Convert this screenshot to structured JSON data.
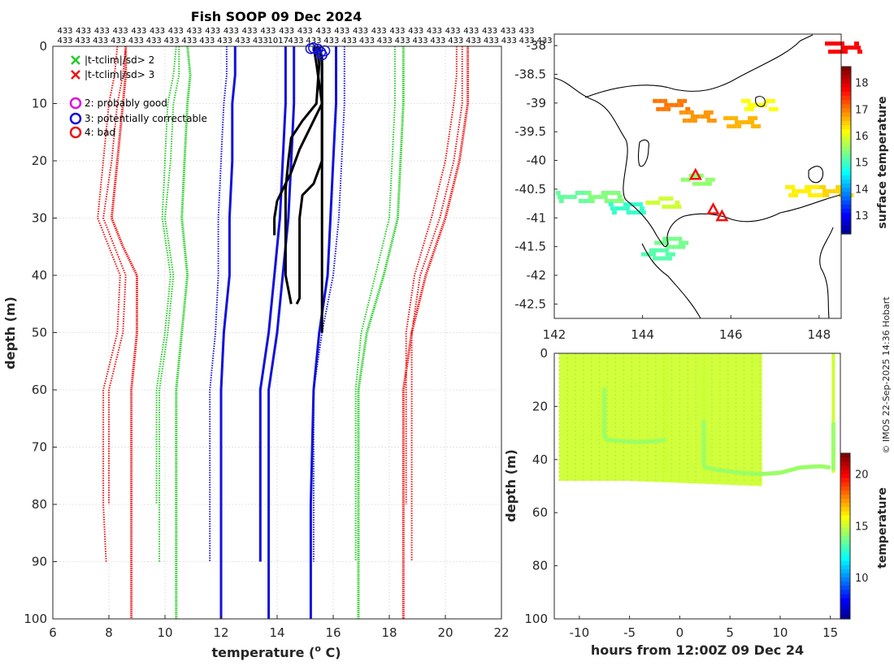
{
  "chart_data": [
    {
      "type": "line",
      "title": "Fish SOOP 09 Dec 2024",
      "xlabel": "temperature (",
      "xlabel_sup": "o",
      "xlabel_tail": " C)",
      "ylabel": "depth (m)",
      "xlim": [
        6,
        22
      ],
      "ylim": [
        0,
        100
      ],
      "xticks": [
        6,
        8,
        10,
        12,
        14,
        16,
        18,
        20,
        22
      ],
      "yticks": [
        0,
        10,
        20,
        30,
        40,
        50,
        60,
        70,
        80,
        90,
        100
      ],
      "grid": true,
      "header_row1": [
        "433",
        "433",
        "433",
        "433",
        "433",
        "433",
        "433",
        "433",
        "433",
        "433",
        "433",
        "433",
        "433",
        "433",
        "433",
        "433",
        "433",
        "433",
        "433",
        "433",
        "433",
        "433",
        "433",
        "433",
        "433",
        "433"
      ],
      "header_row2": [
        "433",
        "433",
        "433",
        "433",
        "433",
        "433",
        "433",
        "433",
        "433",
        "433",
        "433",
        "433",
        "1017",
        "433",
        "433",
        "433",
        "433",
        "433",
        "433",
        "433",
        "433",
        "433",
        "433",
        "433",
        "433",
        "433",
        "433",
        "433"
      ],
      "legend": [
        {
          "marker": "x",
          "color": "#22cc22",
          "label": "|t-tclim|/sd> 2"
        },
        {
          "marker": "x",
          "color": "#ee1111",
          "label": "|t-tclim|/sd> 3"
        },
        {
          "marker": "o",
          "color": "#dd11dd",
          "label": "2: probably good"
        },
        {
          "marker": "o",
          "color": "#1111dd",
          "label": "3: potentially correctable"
        },
        {
          "marker": "o",
          "color": "#ee1111",
          "label": "4: bad"
        }
      ],
      "series": [
        {
          "name": "clim-3sd-low-A",
          "color": "#ee1111",
          "style": "solid-thick",
          "depth": [
            0,
            5,
            10,
            20,
            30,
            35,
            40,
            50,
            60,
            80,
            90,
            100
          ],
          "temp": [
            8.6,
            8.6,
            8.5,
            8.3,
            8.1,
            8.5,
            9.0,
            9.0,
            8.8,
            8.8,
            8.8,
            8.8
          ]
        },
        {
          "name": "clim-3sd-low-B",
          "color": "#ee1111",
          "style": "dotted",
          "depth": [
            0,
            5,
            10,
            20,
            30,
            35,
            40,
            50,
            60,
            80,
            90
          ],
          "temp": [
            8.3,
            8.2,
            8.0,
            7.8,
            7.6,
            8.0,
            8.4,
            8.3,
            7.8,
            7.8,
            7.9
          ]
        },
        {
          "name": "clim-3sd-low-C",
          "color": "#ee1111",
          "style": "dotted",
          "depth": [
            0,
            5,
            10,
            20,
            30,
            35,
            40,
            50,
            60,
            80
          ],
          "temp": [
            8.6,
            8.5,
            8.3,
            8.1,
            7.8,
            8.2,
            8.6,
            8.5,
            8.0,
            8.0
          ]
        },
        {
          "name": "clim-2sd-low-A",
          "color": "#22cc22",
          "style": "solid-thick",
          "depth": [
            0,
            5,
            10,
            20,
            30,
            40,
            50,
            60,
            80,
            90,
            100
          ],
          "temp": [
            10.8,
            10.9,
            10.8,
            10.7,
            10.6,
            10.8,
            10.6,
            10.4,
            10.4,
            10.4,
            10.4
          ]
        },
        {
          "name": "clim-2sd-low-B",
          "color": "#22cc22",
          "style": "dotted",
          "depth": [
            0,
            5,
            10,
            20,
            30,
            40,
            50,
            60,
            80,
            90
          ],
          "temp": [
            10.5,
            10.5,
            10.3,
            10.2,
            10.0,
            10.3,
            10.1,
            9.8,
            9.8,
            9.8
          ]
        },
        {
          "name": "clim-2sd-low-C",
          "color": "#22cc22",
          "style": "dotted",
          "depth": [
            0,
            5,
            10,
            20,
            30,
            40,
            50,
            60,
            80
          ],
          "temp": [
            10.4,
            10.3,
            10.1,
            10.0,
            9.9,
            10.2,
            10.0,
            9.7,
            9.7
          ]
        },
        {
          "name": "clim-1sd-low-A",
          "color": "#1111dd",
          "style": "solid-thick",
          "depth": [
            0,
            5,
            10,
            20,
            30,
            40,
            50,
            60,
            80,
            90,
            100
          ],
          "temp": [
            12.5,
            12.5,
            12.4,
            12.4,
            12.3,
            12.3,
            12.1,
            12.0,
            12.0,
            12.0,
            12.0
          ]
        },
        {
          "name": "clim-1sd-low-B",
          "color": "#1111dd",
          "style": "dotted",
          "depth": [
            0,
            5,
            10,
            20,
            30,
            40,
            50,
            60,
            80,
            90
          ],
          "temp": [
            12.2,
            12.2,
            12.1,
            12.0,
            11.9,
            11.9,
            11.8,
            11.6,
            11.6,
            11.6
          ]
        },
        {
          "name": "clim-mean-A",
          "color": "#1111dd",
          "style": "solid-thick",
          "depth": [
            0,
            5,
            10,
            20,
            30,
            40,
            50,
            60,
            80,
            90
          ],
          "temp": [
            14.3,
            14.3,
            14.3,
            14.2,
            14.1,
            13.9,
            13.7,
            13.4,
            13.4,
            13.4
          ]
        },
        {
          "name": "clim-mean-B",
          "color": "#1111dd",
          "style": "solid-thick",
          "depth": [
            0,
            5,
            10,
            20,
            30,
            40,
            50,
            60,
            80,
            100
          ],
          "temp": [
            14.6,
            14.6,
            14.6,
            14.5,
            14.4,
            14.2,
            14.0,
            13.7,
            13.7,
            13.7
          ]
        },
        {
          "name": "clim-1sd-high-A",
          "color": "#1111dd",
          "style": "solid-thick",
          "depth": [
            0,
            5,
            10,
            20,
            30,
            40,
            50,
            60,
            80,
            100
          ],
          "temp": [
            16.1,
            16.1,
            16.1,
            16.0,
            15.9,
            15.8,
            15.5,
            15.3,
            15.2,
            15.2
          ]
        },
        {
          "name": "clim-1sd-high-B",
          "color": "#1111dd",
          "style": "dotted",
          "depth": [
            0,
            5,
            10,
            20,
            30,
            40,
            50,
            60,
            80,
            90
          ],
          "temp": [
            16.4,
            16.4,
            16.4,
            16.3,
            16.2,
            16.0,
            15.6,
            15.3,
            15.3,
            15.3
          ]
        },
        {
          "name": "clim-2sd-high-A",
          "color": "#22cc22",
          "style": "solid-thick",
          "depth": [
            0,
            5,
            10,
            20,
            30,
            40,
            50,
            60,
            80,
            100
          ],
          "temp": [
            18.5,
            18.5,
            18.5,
            18.4,
            18.3,
            17.8,
            17.2,
            16.9,
            16.9,
            16.9
          ]
        },
        {
          "name": "clim-2sd-high-B",
          "color": "#22cc22",
          "style": "dotted",
          "depth": [
            0,
            5,
            10,
            20,
            30,
            40,
            50,
            60,
            80,
            90
          ],
          "temp": [
            18.2,
            18.2,
            18.2,
            18.1,
            18.0,
            17.5,
            17.0,
            16.8,
            16.8,
            16.8
          ]
        },
        {
          "name": "clim-3sd-high-A",
          "color": "#ee1111",
          "style": "solid-thick",
          "depth": [
            0,
            5,
            10,
            20,
            30,
            40,
            50,
            60,
            80,
            100
          ],
          "temp": [
            20.8,
            20.8,
            20.8,
            20.5,
            20.0,
            19.3,
            18.8,
            18.5,
            18.5,
            18.5
          ]
        },
        {
          "name": "clim-3sd-high-B",
          "color": "#ee1111",
          "style": "dotted",
          "depth": [
            0,
            5,
            10,
            20,
            30,
            40,
            50,
            60,
            80,
            90
          ],
          "temp": [
            20.6,
            20.6,
            20.6,
            20.3,
            19.8,
            19.1,
            18.8,
            18.8,
            18.8,
            18.8
          ]
        },
        {
          "name": "clim-3sd-high-C",
          "color": "#ee1111",
          "style": "dotted",
          "depth": [
            0,
            5,
            10,
            20,
            30,
            40,
            50,
            60,
            80
          ],
          "temp": [
            20.4,
            20.4,
            20.3,
            20.0,
            19.5,
            18.9,
            18.6,
            18.6,
            18.6
          ]
        },
        {
          "name": "obs-profile-1",
          "color": "#000000",
          "style": "solid",
          "depth": [
            0,
            2,
            5,
            10,
            13,
            16,
            20,
            30,
            40,
            50
          ],
          "temp": [
            15.5,
            15.6,
            15.6,
            15.6,
            15.6,
            15.6,
            15.6,
            15.6,
            15.6,
            15.6
          ]
        },
        {
          "name": "obs-profile-2",
          "color": "#000000",
          "style": "solid",
          "depth": [
            0,
            3,
            10,
            13,
            16,
            20,
            25,
            30,
            35,
            40,
            45
          ],
          "temp": [
            15.4,
            15.5,
            15.4,
            14.9,
            14.5,
            14.4,
            14.3,
            14.3,
            14.3,
            14.3,
            14.5
          ]
        },
        {
          "name": "obs-profile-3",
          "color": "#000000",
          "style": "solid",
          "depth": [
            0,
            3,
            10,
            14,
            18,
            22,
            25,
            27,
            30,
            33
          ],
          "temp": [
            15.3,
            15.4,
            15.6,
            15.2,
            14.8,
            14.5,
            14.2,
            14.0,
            13.9,
            13.9
          ]
        },
        {
          "name": "obs-profile-4",
          "color": "#000000",
          "style": "solid",
          "depth": [
            0,
            3,
            10,
            20,
            24,
            26,
            30,
            35,
            40,
            44,
            45
          ],
          "temp": [
            15.5,
            15.6,
            15.6,
            15.6,
            15.3,
            14.9,
            14.8,
            14.8,
            14.8,
            14.8,
            14.7
          ]
        }
      ],
      "flags": [
        {
          "temp": 15.3,
          "depth": 0.3,
          "color": "#1111dd"
        },
        {
          "temp": 15.45,
          "depth": 0.5,
          "color": "#1111dd"
        },
        {
          "temp": 15.55,
          "depth": 1.0,
          "color": "#1111dd"
        },
        {
          "temp": 15.6,
          "depth": 1.5,
          "color": "#1111dd"
        },
        {
          "temp": 15.7,
          "depth": 0.8,
          "color": "#1111dd"
        },
        {
          "temp": 15.2,
          "depth": 0.4,
          "color": "#1111dd"
        }
      ]
    },
    {
      "type": "heatmap",
      "xlim": [
        142,
        148.5
      ],
      "ylim": [
        -42.75,
        -37.8
      ],
      "xticks": [
        142,
        144,
        146,
        148
      ],
      "yticks": [
        -38,
        -38.5,
        -39,
        -39.5,
        -40,
        -40.5,
        -41,
        -41.5,
        -42,
        -42.5
      ],
      "colorbar": {
        "label": "surface temperature",
        "range": [
          12.3,
          18.6
        ],
        "ticks": [
          13,
          14,
          15,
          16,
          17,
          18
        ]
      },
      "patches": [
        {
          "lon": 148.5,
          "lat": -38.0,
          "value": 18.0
        },
        {
          "lon": 144.6,
          "lat": -39.0,
          "value": 17.2
        },
        {
          "lon": 145.2,
          "lat": -39.2,
          "value": 17.0
        },
        {
          "lon": 146.2,
          "lat": -39.3,
          "value": 16.8
        },
        {
          "lon": 146.6,
          "lat": -39.0,
          "value": 16.3
        },
        {
          "lon": 148.3,
          "lat": -40.5,
          "value": 16.6
        },
        {
          "lon": 147.6,
          "lat": -40.5,
          "value": 16.4
        },
        {
          "lon": 142.4,
          "lat": -40.6,
          "value": 15.3
        },
        {
          "lon": 143.1,
          "lat": -40.6,
          "value": 15.5
        },
        {
          "lon": 143.6,
          "lat": -40.8,
          "value": 15.0
        },
        {
          "lon": 144.4,
          "lat": -40.7,
          "value": 16.0
        },
        {
          "lon": 144.6,
          "lat": -41.4,
          "value": 15.4
        },
        {
          "lon": 144.3,
          "lat": -41.6,
          "value": 15.2
        },
        {
          "lon": 145.2,
          "lat": -40.3,
          "value": 15.6
        }
      ],
      "stations": [
        {
          "lon": 145.2,
          "lat": -40.25
        },
        {
          "lon": 145.6,
          "lat": -40.85
        },
        {
          "lon": 145.8,
          "lat": -40.97
        }
      ]
    },
    {
      "type": "scatter",
      "xlabel": "hours from 12:00Z 09 Dec 24",
      "ylabel": "depth (m)",
      "xlim": [
        -12.5,
        16
      ],
      "ylim": [
        0,
        100
      ],
      "xticks": [
        -10,
        -5,
        0,
        5,
        10,
        15
      ],
      "yticks": [
        0,
        20,
        40,
        60,
        80,
        100
      ],
      "colorbar": {
        "label": "temperature",
        "range": [
          6,
          22
        ],
        "ticks": [
          10,
          15,
          20
        ]
      },
      "bands": [
        {
          "x0": -12.0,
          "x1": 8.2,
          "bottom": [
            48,
            48,
            49,
            50
          ],
          "value": 15.2
        }
      ],
      "profile_tracks": [
        {
          "hours": [
            -7.5,
            -7.5,
            -7.3,
            -6,
            -4,
            -2,
            -1.4
          ],
          "depth": [
            13,
            31,
            32.5,
            33,
            33.4,
            33,
            32.5
          ],
          "value": 14.4
        },
        {
          "hours": [
            2.4,
            2.4,
            2.6,
            4,
            6,
            8,
            10,
            12,
            14,
            15.0
          ],
          "depth": [
            25,
            42,
            43,
            44,
            45,
            45.5,
            45,
            43,
            42.5,
            43
          ],
          "value": 14.4
        },
        {
          "hours": [
            15.3,
            15.3
          ],
          "depth": [
            26,
            44
          ],
          "value": 14.4
        }
      ],
      "small_columns": [
        -1.4,
        2.4,
        15.3
      ]
    }
  ],
  "credit": "© IMOS 22-Sep-2025 14:36 Hobart"
}
